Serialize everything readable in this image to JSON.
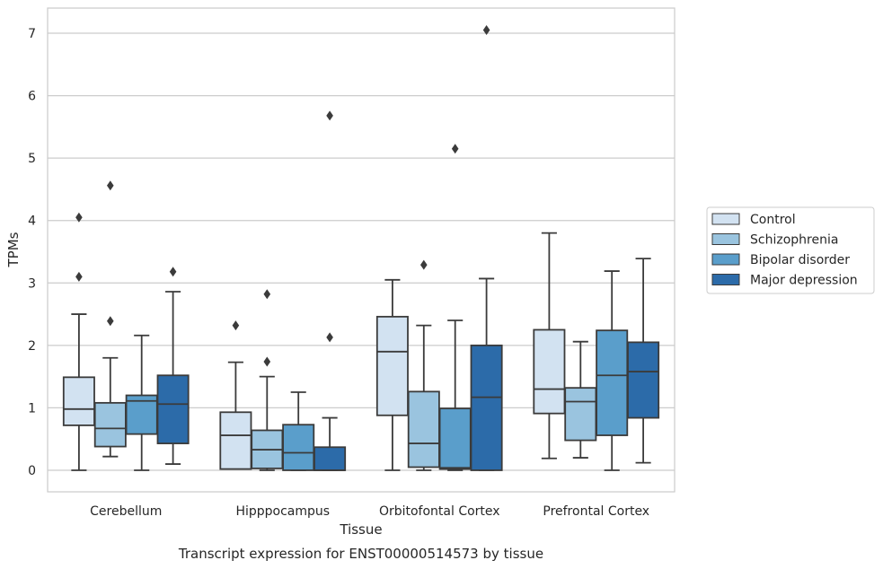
{
  "chart_data": {
    "type": "box",
    "xlabel": "Tissue",
    "ylabel": "TPMs",
    "caption": "Transcript expression for ENST00000514573 by tissue",
    "ylim": [
      -0.35,
      7.4
    ],
    "yticks": [
      0,
      1,
      2,
      3,
      4,
      5,
      6,
      7
    ],
    "grid": "horizontal",
    "legend_position": "right",
    "categories": [
      "Cerebellum",
      "Hipppocampus",
      "Orbitofontal Cortex",
      "Prefrontal Cortex"
    ],
    "series": [
      {
        "name": "Control",
        "color": "#d2e2f1",
        "boxes": [
          {
            "whislo": 0.0,
            "q1": 0.72,
            "med": 0.98,
            "q3": 1.49,
            "whishi": 2.5,
            "fliers": [
              3.1,
              4.05
            ]
          },
          {
            "whislo": 0.02,
            "q1": 0.02,
            "med": 0.56,
            "q3": 0.93,
            "whishi": 1.73,
            "fliers": [
              2.32
            ]
          },
          {
            "whislo": 0.0,
            "q1": 0.88,
            "med": 1.9,
            "q3": 2.46,
            "whishi": 3.05,
            "fliers": []
          },
          {
            "whislo": 0.19,
            "q1": 0.91,
            "med": 1.3,
            "q3": 2.25,
            "whishi": 3.8,
            "fliers": []
          }
        ]
      },
      {
        "name": "Schizophrenia",
        "color": "#9ac4df",
        "boxes": [
          {
            "whislo": 0.22,
            "q1": 0.38,
            "med": 0.67,
            "q3": 1.08,
            "whishi": 1.8,
            "fliers": [
              2.39,
              4.56
            ]
          },
          {
            "whislo": 0.0,
            "q1": 0.03,
            "med": 0.33,
            "q3": 0.64,
            "whishi": 1.5,
            "fliers": [
              1.74,
              2.82
            ]
          },
          {
            "whislo": 0.0,
            "q1": 0.05,
            "med": 0.43,
            "q3": 1.26,
            "whishi": 2.32,
            "fliers": [
              3.29
            ]
          },
          {
            "whislo": 0.2,
            "q1": 0.48,
            "med": 1.1,
            "q3": 1.32,
            "whishi": 2.06,
            "fliers": []
          }
        ]
      },
      {
        "name": "Bipolar disorder",
        "color": "#5a9ecb",
        "boxes": [
          {
            "whislo": 0.0,
            "q1": 0.58,
            "med": 1.11,
            "q3": 1.2,
            "whishi": 2.16,
            "fliers": []
          },
          {
            "whislo": 0.0,
            "q1": 0.0,
            "med": 0.28,
            "q3": 0.73,
            "whishi": 1.25,
            "fliers": []
          },
          {
            "whislo": 0.0,
            "q1": 0.02,
            "med": 0.04,
            "q3": 0.99,
            "whishi": 2.4,
            "fliers": [
              5.15
            ]
          },
          {
            "whislo": 0.0,
            "q1": 0.56,
            "med": 1.52,
            "q3": 2.24,
            "whishi": 3.19,
            "fliers": []
          }
        ]
      },
      {
        "name": "Major depression",
        "color": "#2c6ba9",
        "boxes": [
          {
            "whislo": 0.1,
            "q1": 0.43,
            "med": 1.06,
            "q3": 1.52,
            "whishi": 2.86,
            "fliers": [
              3.18
            ]
          },
          {
            "whislo": 0.0,
            "q1": 0.0,
            "med": 0.0,
            "q3": 0.37,
            "whishi": 0.84,
            "fliers": [
              2.13,
              5.68
            ]
          },
          {
            "whislo": 0.0,
            "q1": 0.0,
            "med": 1.17,
            "q3": 2.0,
            "whishi": 3.07,
            "fliers": [
              7.05
            ]
          },
          {
            "whislo": 0.12,
            "q1": 0.84,
            "med": 1.58,
            "q3": 2.05,
            "whishi": 3.39,
            "fliers": []
          }
        ]
      }
    ]
  }
}
